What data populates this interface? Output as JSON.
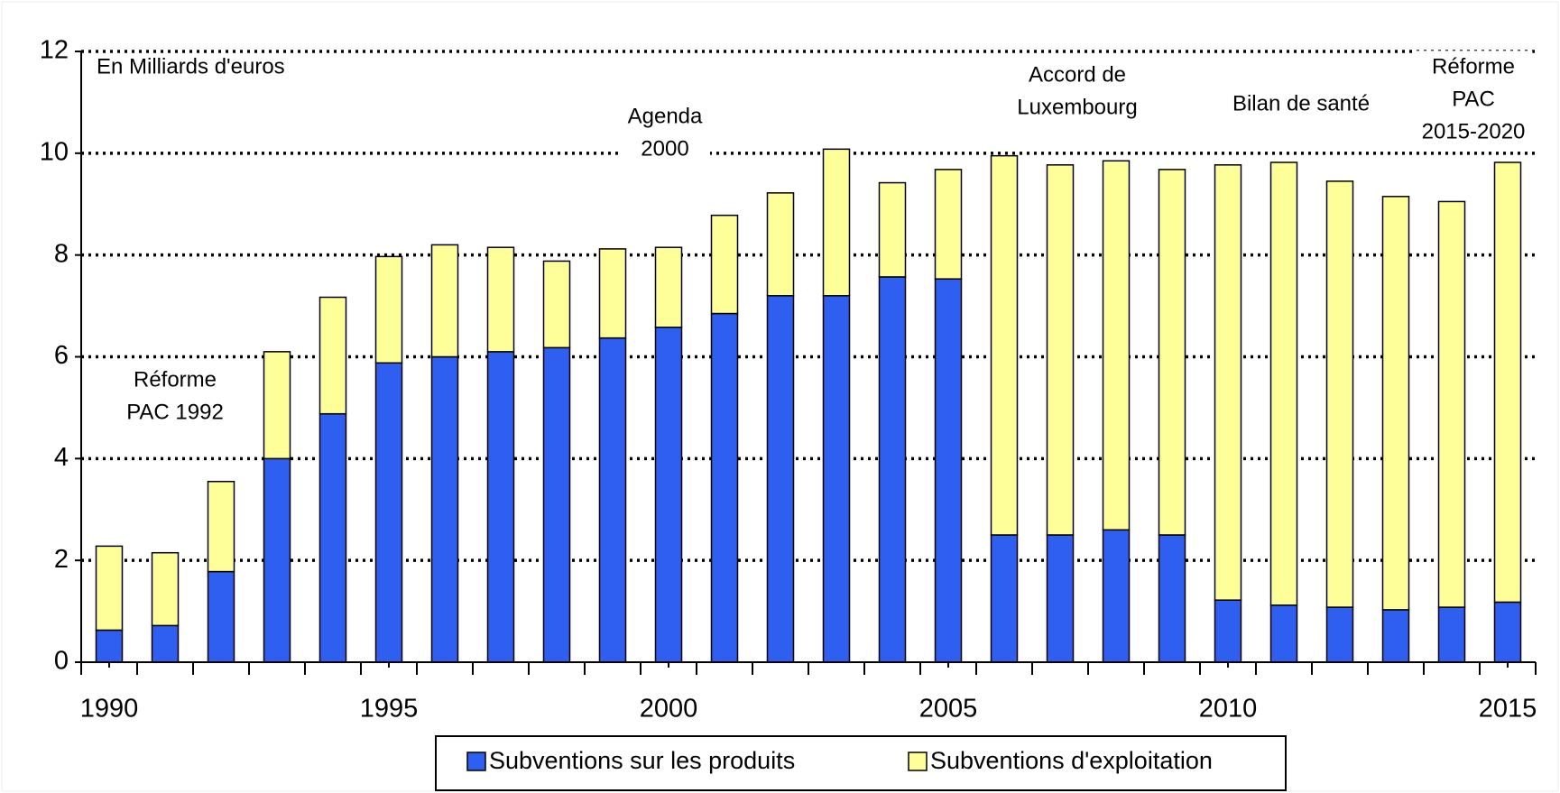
{
  "chart_data": {
    "type": "stacked-bar",
    "annotations": [
      {
        "lines": [
          "En Milliards d'euros"
        ]
      },
      {
        "lines": [
          "Réforme",
          "PAC 1992"
        ]
      },
      {
        "lines": [
          "Agenda",
          "2000"
        ]
      },
      {
        "lines": [
          "Accord de",
          "Luxembourg"
        ]
      },
      {
        "lines": [
          "Bilan de santé"
        ]
      },
      {
        "lines": [
          "Réforme",
          "PAC",
          "2015-2020"
        ]
      }
    ],
    "x": [
      1990,
      1991,
      1992,
      1993,
      1994,
      1995,
      1996,
      1997,
      1998,
      1999,
      2000,
      2001,
      2002,
      2003,
      2004,
      2005,
      2006,
      2007,
      2008,
      2009,
      2010,
      2011,
      2012,
      2013,
      2014,
      2015
    ],
    "xlim": [
      1989.5,
      2015.5
    ],
    "xticks": [
      1990,
      1995,
      2000,
      2005,
      2010,
      2015
    ],
    "ylim": [
      0,
      12
    ],
    "yticks": [
      0,
      2,
      4,
      6,
      8,
      10,
      12
    ],
    "grid": true,
    "series": [
      {
        "name": "Subventions sur les produits",
        "color": "#2f5ff0",
        "values": [
          0.63,
          0.72,
          1.78,
          4.0,
          4.88,
          5.88,
          6.0,
          6.1,
          6.18,
          6.37,
          6.58,
          6.85,
          7.2,
          7.2,
          7.57,
          7.53,
          2.5,
          2.5,
          2.6,
          2.5,
          1.22,
          1.12,
          1.08,
          1.03,
          1.08,
          1.18
        ]
      },
      {
        "name": "Subventions d'exploitation",
        "color": "#ffff99",
        "values": [
          1.65,
          1.43,
          1.77,
          2.1,
          2.29,
          2.09,
          2.2,
          2.05,
          1.7,
          1.75,
          1.57,
          1.93,
          2.02,
          2.88,
          1.85,
          2.15,
          7.45,
          7.27,
          7.25,
          7.18,
          8.55,
          8.7,
          8.37,
          8.12,
          7.97,
          8.64
        ]
      }
    ]
  }
}
